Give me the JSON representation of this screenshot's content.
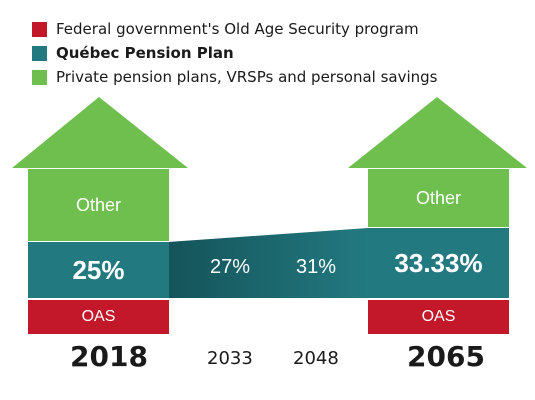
{
  "colors": {
    "oas_red": "#c3172a",
    "qpp_teal": "#237980",
    "private_green": "#6fbf4e",
    "text_dark": "#1a1a1a"
  },
  "legend": {
    "items": [
      {
        "label": "Federal government's Old Age Security program",
        "color": "#c3172a",
        "bold": false
      },
      {
        "label": "Québec Pension Plan",
        "color": "#237980",
        "bold": true
      },
      {
        "label": "Private pension plans, VRSPs and personal savings",
        "color": "#6fbf4e",
        "bold": false
      }
    ]
  },
  "house_left": {
    "year": "2018",
    "other": "Other",
    "qpp_pct": "25%",
    "oas": "OAS"
  },
  "middle": {
    "points": [
      {
        "year": "2033",
        "pct": "27%"
      },
      {
        "year": "2048",
        "pct": "31%"
      }
    ]
  },
  "house_right": {
    "year": "2065",
    "other": "Other",
    "qpp_pct": "33.33%",
    "oas": "OAS"
  }
}
